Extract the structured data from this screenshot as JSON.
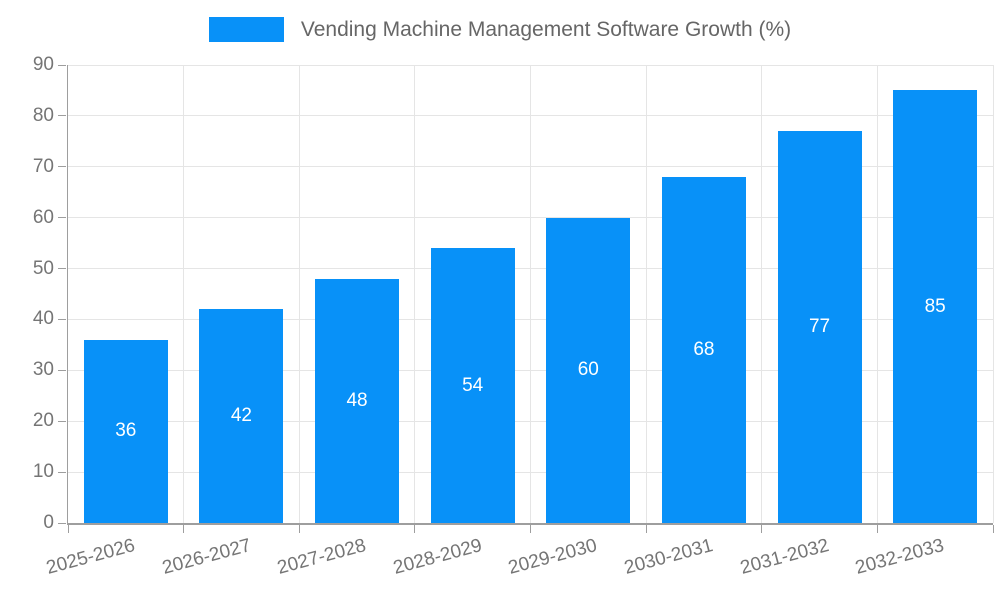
{
  "legend": {
    "label": "Vending Machine Management Software Growth (%)"
  },
  "chart_data": {
    "type": "bar",
    "title": "Vending Machine Management Software Growth (%)",
    "series_name": "Vending Machine Management Software Growth (%)",
    "categories": [
      "2025-2026",
      "2026-2027",
      "2027-2028",
      "2028-2029",
      "2029-2030",
      "2030-2031",
      "2031-2032",
      "2032-2033"
    ],
    "values": [
      36,
      42,
      48,
      54,
      60,
      68,
      77,
      85
    ],
    "value_labels": [
      "36",
      "42",
      "48",
      "54",
      "60",
      "68",
      "77",
      "85"
    ],
    "xlabel": "",
    "ylabel": "",
    "ylim": [
      0,
      90
    ],
    "yticks": [
      0,
      10,
      20,
      30,
      40,
      50,
      60,
      70,
      80,
      90
    ],
    "grid": true,
    "legend_position": "top-center",
    "x_label_rotation_deg": -15,
    "bar_color": "#0891F8",
    "grid_color": "#E5E5E5",
    "axis_color": "#9E9E9E",
    "tick_label_color": "#757575",
    "legend_text_color": "#666666",
    "value_label_color": "#FFFFFF"
  }
}
